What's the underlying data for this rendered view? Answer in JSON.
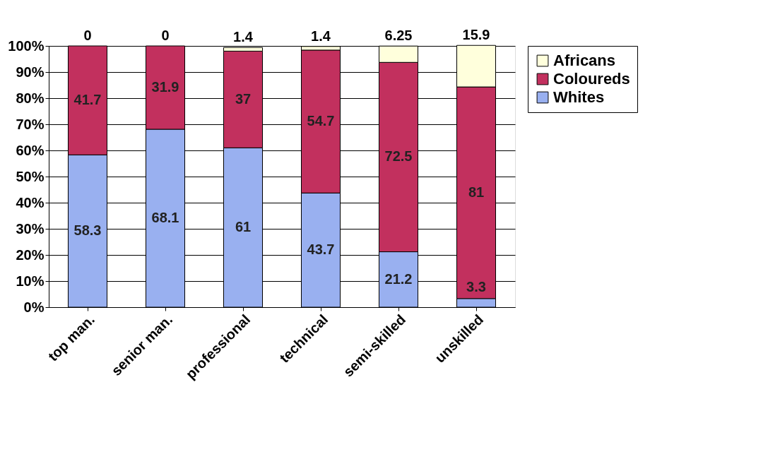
{
  "chart_data": {
    "type": "bar",
    "stacked": true,
    "categories": [
      "top man.",
      "senior man.",
      "professional",
      "technical",
      "semi-skilled",
      "unskilled"
    ],
    "series": [
      {
        "name": "Whites",
        "color": "#99b0f0",
        "values": [
          58.3,
          68.1,
          61,
          43.7,
          21.2,
          3.3
        ]
      },
      {
        "name": "Coloureds",
        "color": "#c2305e",
        "values": [
          41.7,
          31.9,
          37,
          54.7,
          72.5,
          81
        ]
      },
      {
        "name": "Africans",
        "color": "#ffffdc",
        "values": [
          0,
          0,
          1.4,
          1.4,
          6.25,
          15.9
        ]
      }
    ],
    "ylim": [
      0,
      100
    ],
    "yticks": [
      {
        "value": 0,
        "label": "0%"
      },
      {
        "value": 10,
        "label": "10%"
      },
      {
        "value": 20,
        "label": "20%"
      },
      {
        "value": 30,
        "label": "30%"
      },
      {
        "value": 40,
        "label": "40%"
      },
      {
        "value": 50,
        "label": "50%"
      },
      {
        "value": 60,
        "label": "60%"
      },
      {
        "value": 70,
        "label": "70%"
      },
      {
        "value": 80,
        "label": "80%"
      },
      {
        "value": 90,
        "label": "90%"
      },
      {
        "value": 100,
        "label": "100%"
      }
    ],
    "grid": "y",
    "legend": "right",
    "data_labels": true
  }
}
